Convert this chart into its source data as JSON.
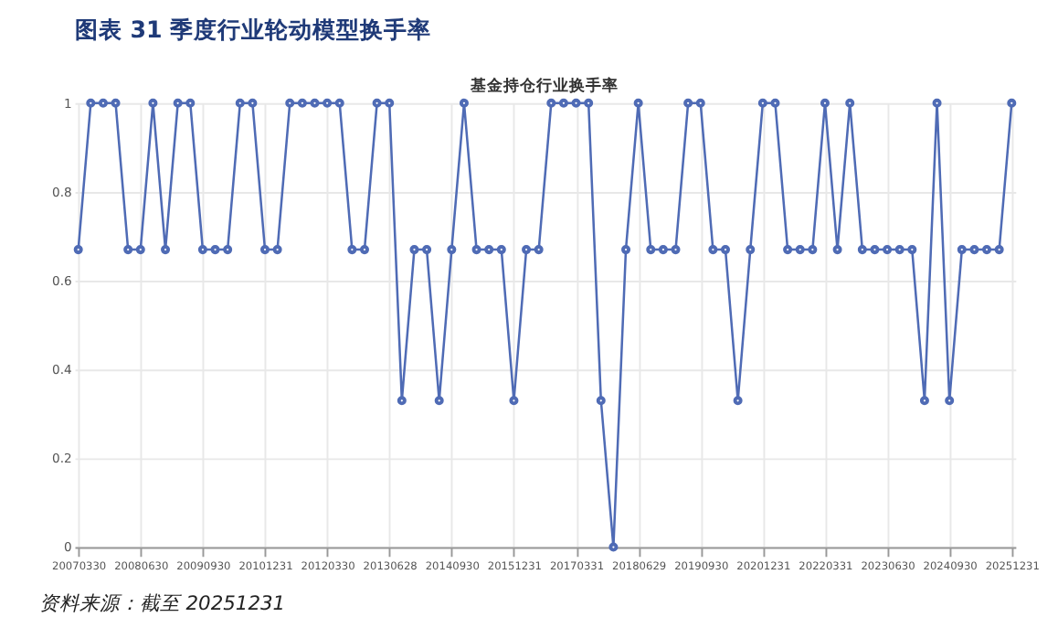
{
  "chart_data": {
    "type": "line",
    "title": "图表 31 季度行业轮动模型换手率",
    "subtitle": "基金持仓行业换手率",
    "annotations": [
      "资料来源：截至 20251231"
    ],
    "categories": [
      "20070330",
      null,
      null,
      null,
      null,
      "20080630",
      null,
      null,
      null,
      null,
      "20090930",
      null,
      null,
      null,
      null,
      "20101231",
      null,
      null,
      null,
      null,
      "20120330",
      null,
      null,
      null,
      null,
      "20130628",
      null,
      null,
      null,
      null,
      "20140930",
      null,
      null,
      null,
      null,
      "20151231",
      null,
      null,
      null,
      null,
      "20170331",
      null,
      null,
      null,
      null,
      "20180629",
      null,
      null,
      null,
      null,
      "20190930",
      null,
      null,
      null,
      null,
      "20201231",
      null,
      null,
      null,
      null,
      "20220331",
      null,
      null,
      null,
      null,
      "20230630",
      null,
      null,
      null,
      null,
      "20240930",
      null,
      null,
      null,
      null,
      "20251231"
    ],
    "series": [
      {
        "color": "#4f6bb5",
        "values": [
          0.67,
          1,
          1,
          1,
          0.67,
          0.67,
          1,
          0.67,
          1,
          1,
          0.67,
          0.67,
          0.67,
          1,
          1,
          0.67,
          0.67,
          1,
          1,
          1,
          1,
          1,
          0.67,
          0.67,
          1,
          1,
          0.33,
          0.67,
          0.67,
          0.33,
          0.67,
          1,
          0.67,
          0.67,
          0.67,
          0.33,
          0.67,
          0.67,
          1,
          1,
          1,
          1,
          0.33,
          0,
          0.67,
          1,
          0.67,
          0.67,
          0.67,
          1,
          1,
          0.67,
          0.67,
          0.33,
          0.67,
          1,
          1,
          0.67,
          0.67,
          0.67,
          1,
          0.67,
          1,
          0.67,
          0.67,
          0.67,
          0.67,
          0.67,
          0.33,
          1,
          0.33,
          0.67,
          0.67,
          0.67,
          0.67,
          1
        ]
      }
    ],
    "ylim": [
      0,
      1
    ],
    "yticks": [
      0,
      0.2,
      0.4,
      0.6,
      0.8,
      1
    ],
    "grid": true,
    "marker": "circle",
    "line_style": "solid"
  }
}
